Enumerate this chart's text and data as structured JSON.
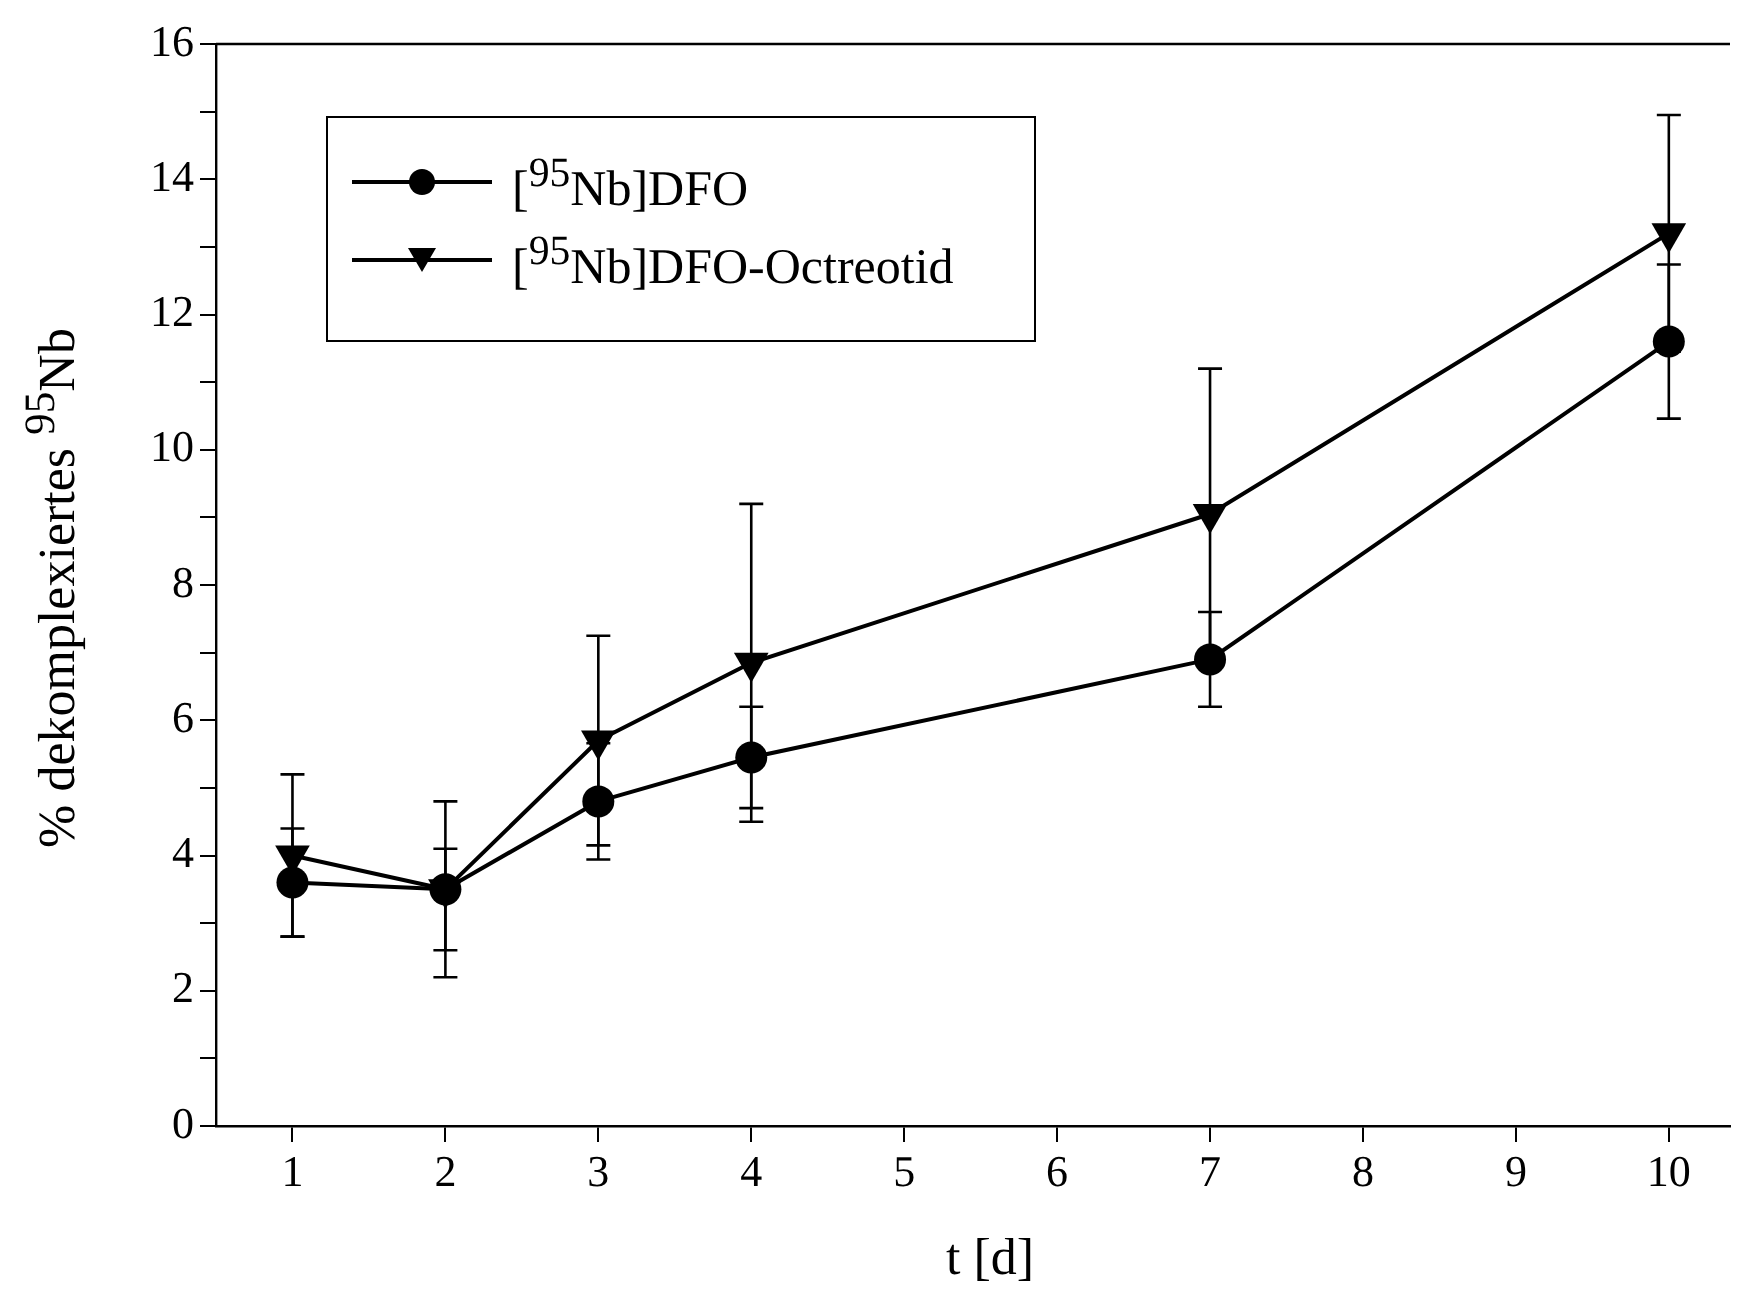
{
  "chart_data": {
    "type": "line",
    "xlabel": "t [d]",
    "ylabel": "% dekomplexiertes $^{95}$Nb",
    "x": [
      1,
      2,
      3,
      4,
      7,
      10
    ],
    "series": [
      {
        "name": "[$^{95}$Nb]DFO",
        "color": "#000000",
        "marker": "circle",
        "values": [
          3.6,
          3.5,
          4.8,
          5.45,
          6.9,
          11.6
        ],
        "errors": [
          0.8,
          [
            2.6,
            4.1
          ],
          0.86,
          0.75,
          0.7,
          1.14
        ]
      },
      {
        "name": "[$^{95}$Nb]DFO-Octreotid",
        "color": "#000000",
        "marker": "triangle",
        "values": [
          4.0,
          3.5,
          5.7,
          6.85,
          9.05,
          13.2
        ],
        "errors": [
          1.2,
          1.3,
          1.55,
          2.35,
          2.15,
          1.75
        ]
      }
    ],
    "xlim": [
      0.5,
      10.4
    ],
    "xticks": [
      1,
      2,
      3,
      4,
      5,
      6,
      7,
      8,
      9,
      10
    ],
    "ylim": [
      0,
      16
    ],
    "yticks": [
      0,
      {
        "value": 1,
        "label": null
      },
      2,
      {
        "value": 3,
        "label": null
      },
      4,
      {
        "value": 5,
        "label": null
      },
      6,
      {
        "value": 7,
        "label": null
      },
      8,
      {
        "value": 9,
        "label": null
      },
      10,
      {
        "value": 11,
        "label": null
      },
      12,
      {
        "value": 13,
        "label": null
      },
      14,
      {
        "value": 15,
        "label": null
      },
      16
    ],
    "grid": false,
    "legend": "top left",
    "line_style": "solid"
  }
}
